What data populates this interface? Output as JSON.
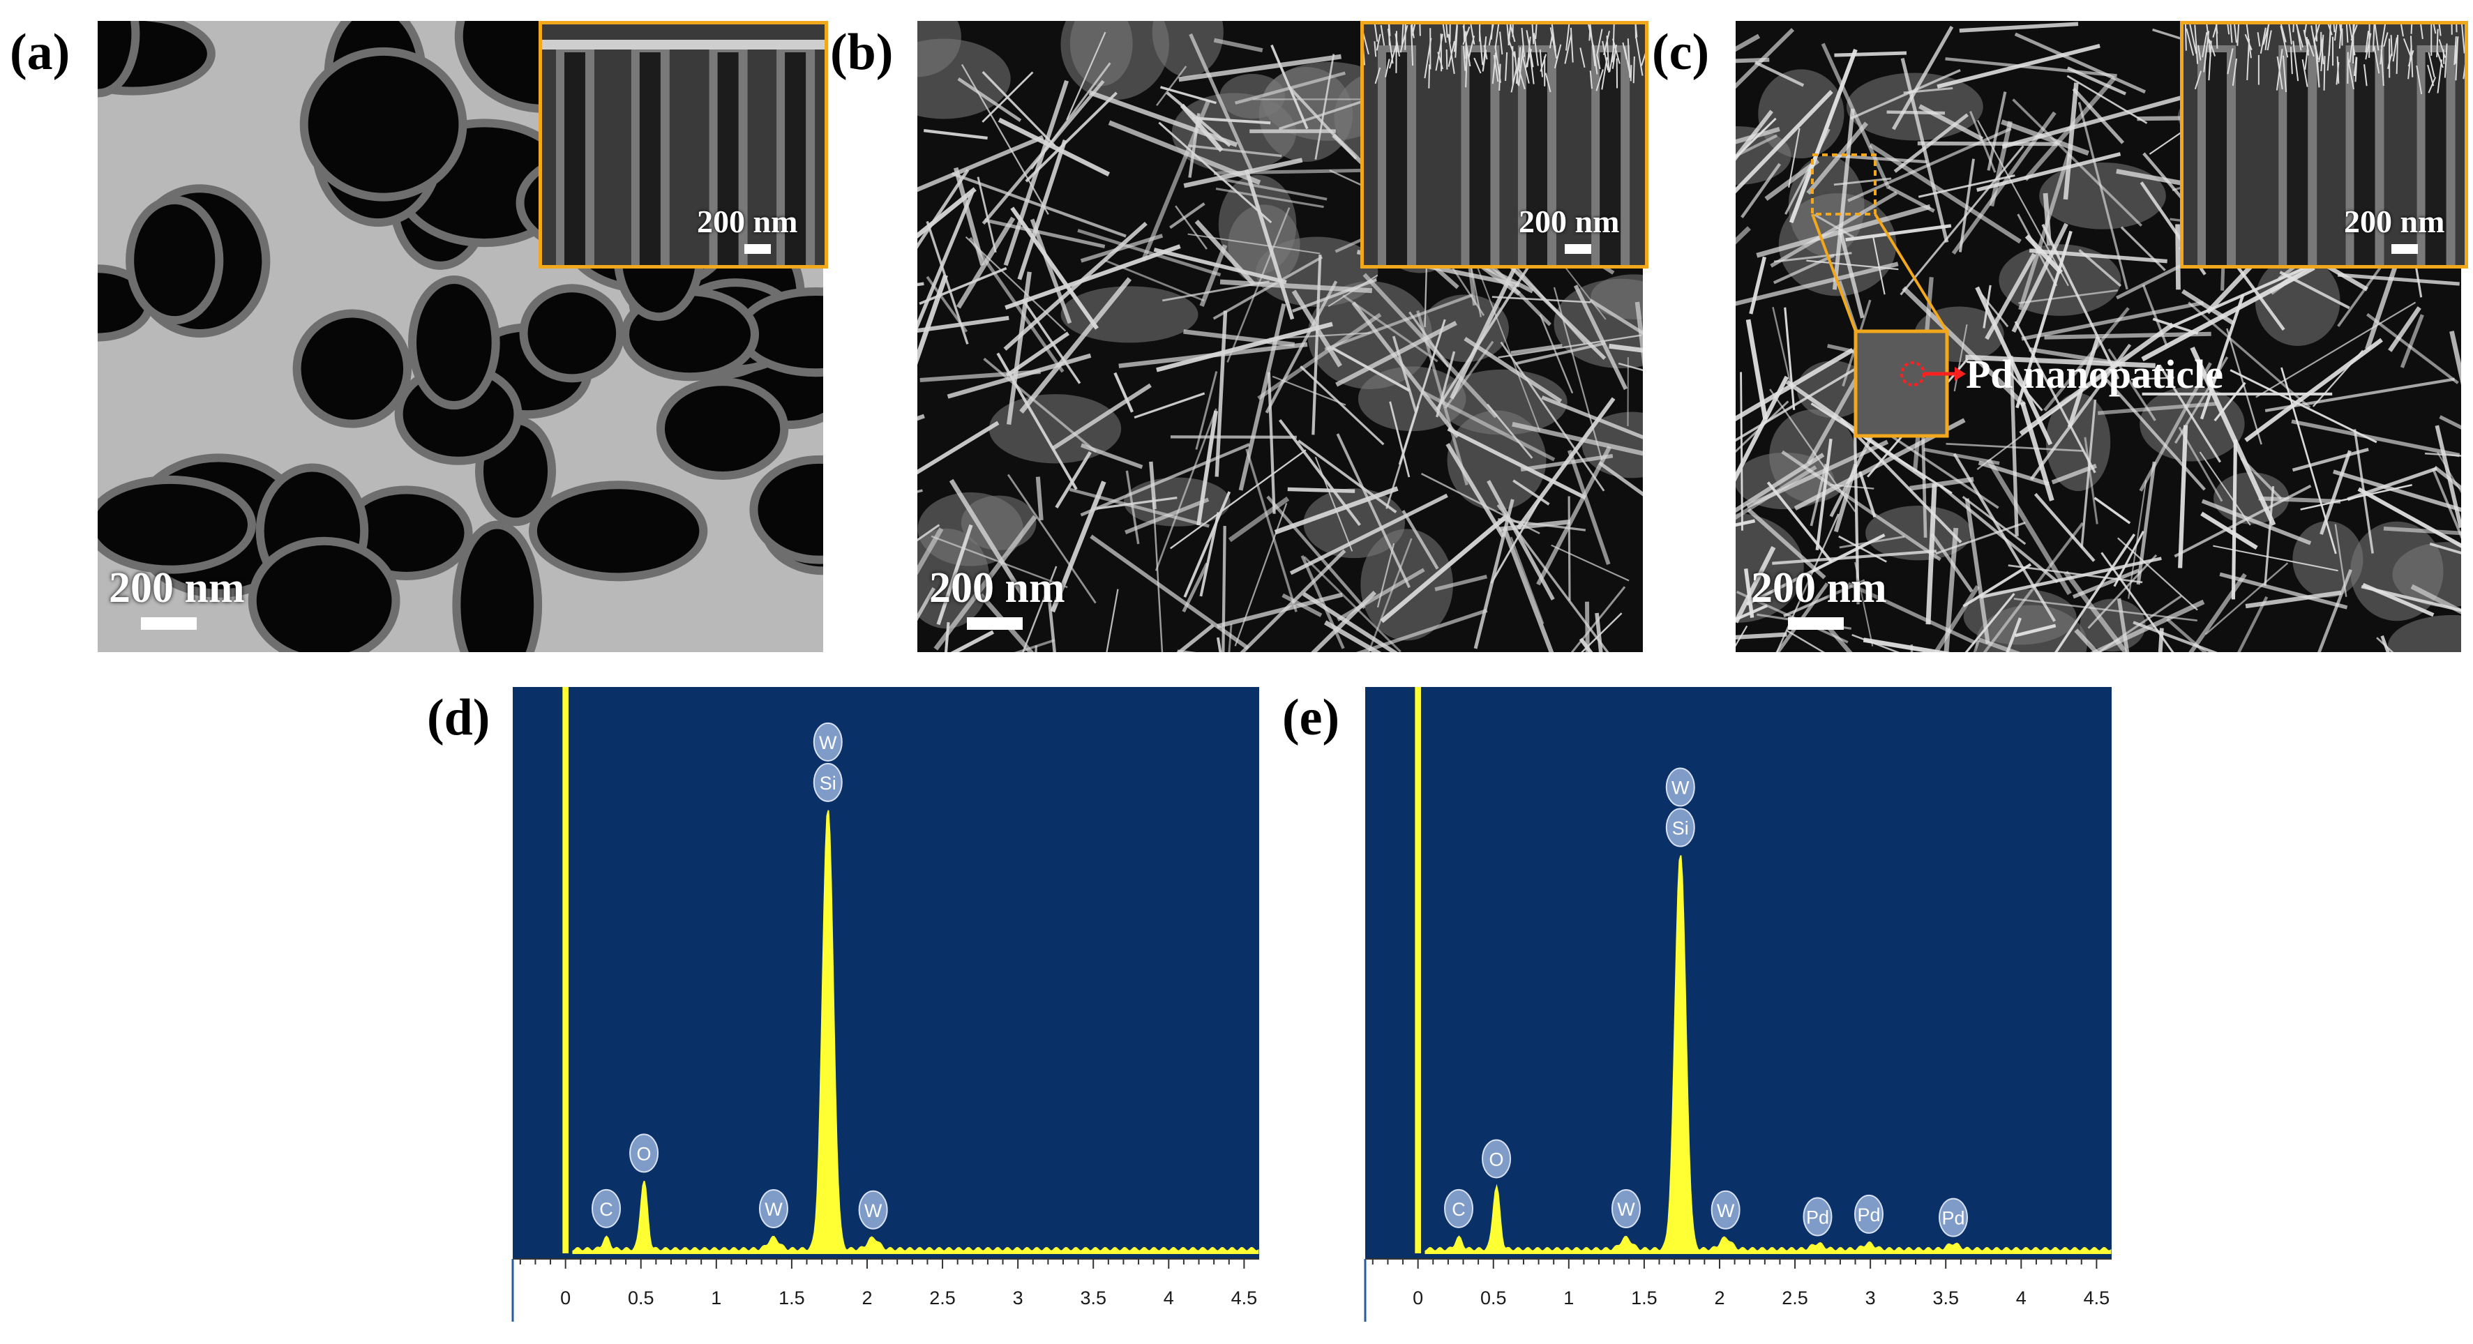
{
  "panels": {
    "a": {
      "label": "(a)",
      "scale": "200 nm",
      "inset_scale": "200 nm"
    },
    "b": {
      "label": "(b)",
      "scale": "200 nm",
      "inset_scale": "200 nm"
    },
    "c": {
      "label": "(c)",
      "scale": "200 nm",
      "inset_scale": "200 nm",
      "annotation": "Pd nanopaticle"
    },
    "d": {
      "label": "(d)"
    },
    "e": {
      "label": "(e)"
    }
  },
  "colors": {
    "plot_background": "#0a3068",
    "spectrum": "#ffff33",
    "inset_border": "#f2a81d",
    "peak_marker": "#7f9cc8",
    "arrow": "#ff2020"
  },
  "chart_data": [
    {
      "type": "area",
      "panel": "(d)",
      "xlim": [
        -0.35,
        4.6
      ],
      "x_ticks": [
        "0",
        "0.5",
        "1",
        "1.5",
        "2",
        "2.5",
        "3",
        "3.5",
        "4",
        "4.5"
      ],
      "xlabel": "",
      "ylabel": "",
      "peak_labels": [
        {
          "element": "C",
          "x": 0.27
        },
        {
          "element": "O",
          "x": 0.52
        },
        {
          "element": "W",
          "x": 1.38
        },
        {
          "element": "Si",
          "x": 1.74
        },
        {
          "element": "W",
          "x": 1.74
        },
        {
          "element": "W",
          "x": 2.04
        }
      ],
      "spectrum": {
        "x": [
          0.0,
          0.27,
          0.52,
          1.38,
          1.74,
          2.04
        ],
        "y": [
          1.0,
          0.02,
          0.12,
          0.02,
          0.78,
          0.02
        ]
      }
    },
    {
      "type": "area",
      "panel": "(e)",
      "xlim": [
        -0.35,
        4.6
      ],
      "x_ticks": [
        "0",
        "0.5",
        "1",
        "1.5",
        "2",
        "2.5",
        "3",
        "3.5",
        "4",
        "4.5"
      ],
      "xlabel": "",
      "ylabel": "",
      "peak_labels": [
        {
          "element": "C",
          "x": 0.27
        },
        {
          "element": "O",
          "x": 0.52
        },
        {
          "element": "W",
          "x": 1.38
        },
        {
          "element": "Si",
          "x": 1.74
        },
        {
          "element": "W",
          "x": 1.74
        },
        {
          "element": "W",
          "x": 2.04
        },
        {
          "element": "Pd",
          "x": 2.65
        },
        {
          "element": "Pd",
          "x": 2.99
        },
        {
          "element": "Pd",
          "x": 3.55
        }
      ],
      "spectrum": {
        "x": [
          0.0,
          0.27,
          0.52,
          1.38,
          1.74,
          2.04,
          2.65,
          2.99,
          3.55
        ],
        "y": [
          1.0,
          0.02,
          0.11,
          0.02,
          0.7,
          0.02,
          0.01,
          0.01,
          0.01
        ]
      }
    }
  ]
}
